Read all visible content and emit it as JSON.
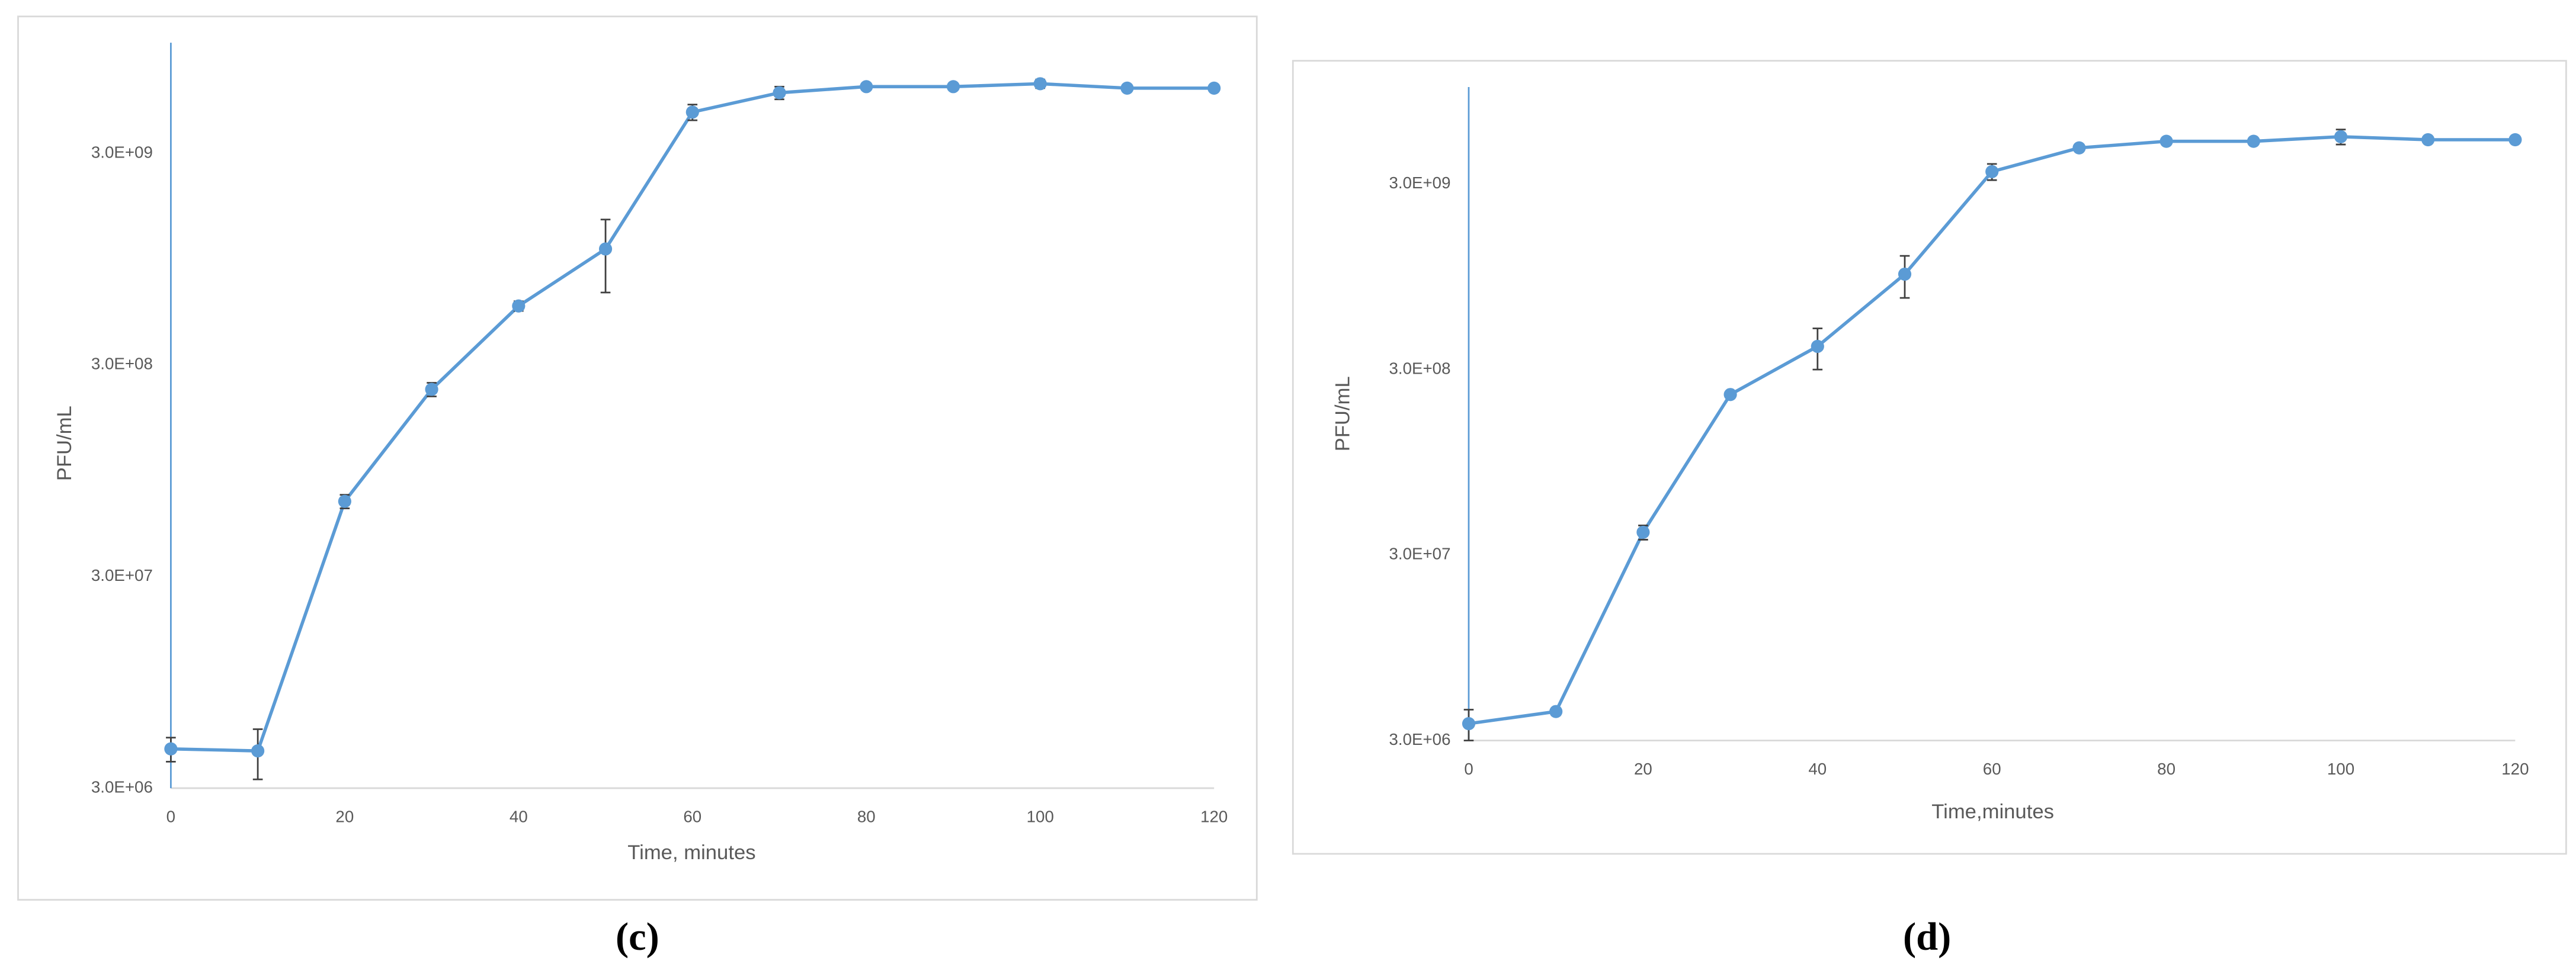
{
  "chart_data": [
    {
      "type": "line",
      "caption": "(c)",
      "xlabel": "Time, minutes",
      "ylabel": "PFU/mL",
      "log_scale": true,
      "grid": false,
      "x": [
        0,
        10,
        20,
        30,
        40,
        50,
        60,
        70,
        80,
        90,
        100,
        110,
        120
      ],
      "series": [
        {
          "name": "PFU/mL",
          "color": "#5b9bd5",
          "error_color": "#404040",
          "values": [
            4600000,
            4500000,
            68000000,
            230000000,
            570000000,
            1060000000,
            4700000000,
            5800000000,
            6200000000,
            6200000000,
            6400000000,
            6100000000,
            6100000000
          ],
          "errors": [
            600000,
            1200000,
            5000000,
            17000000,
            30000000,
            400000000,
            400000000,
            400000000,
            100000000,
            100000000,
            300000000,
            100000000,
            100000000
          ]
        }
      ],
      "xlim": [
        0,
        120
      ],
      "xticks": [
        0,
        20,
        40,
        60,
        80,
        100,
        120
      ],
      "ylim": [
        3000000,
        10000000000
      ],
      "yticks": [
        {
          "value": 3000000,
          "label": "3.0E+06"
        },
        {
          "value": 30000000,
          "label": "3.0E+07"
        },
        {
          "value": 300000000,
          "label": "3.0E+08"
        },
        {
          "value": 3000000000,
          "label": "3.0E+09"
        }
      ]
    },
    {
      "type": "line",
      "caption": "(d)",
      "xlabel": "Time,minutes",
      "ylabel": "PFU/mL",
      "log_scale": true,
      "grid": false,
      "x": [
        0,
        10,
        20,
        30,
        40,
        50,
        60,
        70,
        80,
        90,
        100,
        110,
        120
      ],
      "series": [
        {
          "name": "PFU/mL",
          "color": "#5b9bd5",
          "error_color": "#404040",
          "values": [
            3700000,
            4300000,
            39800000,
            220000000,
            400000000,
            980000000,
            3500000000,
            4700000000,
            5100000000,
            5100000000,
            5400000000,
            5200000000,
            5200000000
          ],
          "errors": [
            700000,
            200000,
            3500000,
            0,
            100000000,
            250000000,
            350000000,
            100000000,
            100000000,
            100000000,
            500000000,
            100000000,
            100000000
          ]
        }
      ],
      "xlim": [
        0,
        120
      ],
      "xticks": [
        0,
        20,
        40,
        60,
        80,
        100,
        120
      ],
      "ylim": [
        3000000,
        10000000000
      ],
      "yticks": [
        {
          "value": 3000000,
          "label": "3.0E+06"
        },
        {
          "value": 30000000,
          "label": "3.0E+07"
        },
        {
          "value": 300000000,
          "label": "3.0E+08"
        },
        {
          "value": 3000000000,
          "label": "3.0E+09"
        }
      ]
    }
  ]
}
